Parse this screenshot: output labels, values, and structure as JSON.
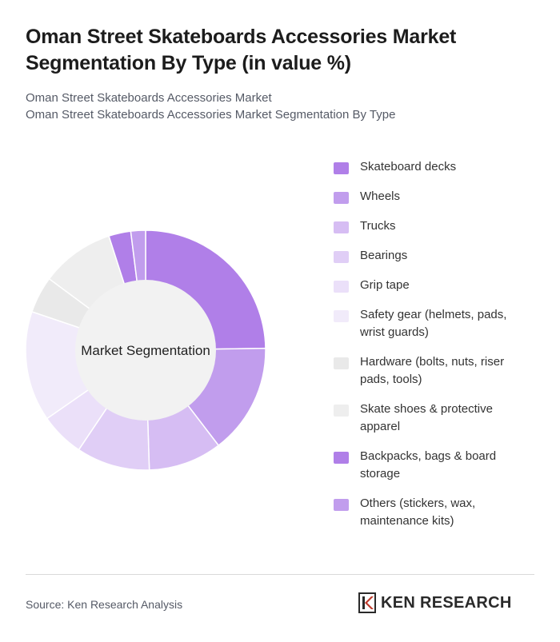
{
  "header": {
    "title": "Oman Street Skateboards Accessories Market Segmentation By Type (in value %)",
    "subtitle_line1": "Oman Street Skateboards Accessories Market",
    "subtitle_line2": "Oman Street Skateboards Accessories Market Segmentation By Type"
  },
  "chart_data": {
    "type": "pie",
    "variant": "donut",
    "center_label": "Market Segmentation",
    "categories": [
      "Skateboard decks",
      "Wheels",
      "Trucks",
      "Bearings",
      "Grip tape",
      "Safety gear (helmets, pads, wrist guards)",
      "Hardware (bolts, nuts, riser pads, tools)",
      "Skate shoes & protective apparel",
      "Backpacks, bags & board storage",
      "Others (stickers, wax, maintenance kits)"
    ],
    "values": [
      25,
      15,
      10,
      10,
      6,
      15,
      5,
      10,
      3,
      2
    ],
    "colors": [
      "#b07fe8",
      "#c19ded",
      "#d6bdf3",
      "#e0cef6",
      "#ebe0f9",
      "#f1ebfa",
      "#e9e9e9",
      "#eeeeee",
      "#b07fe8",
      "#c19ded"
    ],
    "legend_position": "right"
  },
  "footer": {
    "source": "Source: Ken Research Analysis",
    "logo_text": "KEN RESEARCH"
  }
}
